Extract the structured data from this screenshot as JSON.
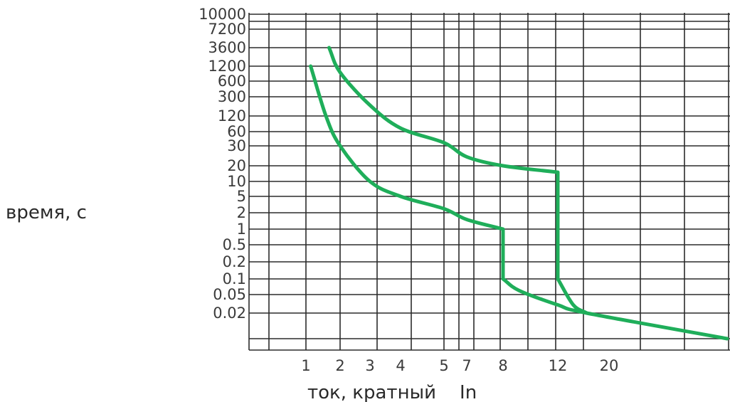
{
  "chart_data": {
    "type": "line",
    "title": "",
    "ylabel": "время, с",
    "xlabel": "ток, кратный    In",
    "ytick_labels": [
      "10000",
      "7200",
      "3600",
      "1200",
      "600",
      "300",
      "120",
      "60",
      "30",
      "20",
      "10",
      "5",
      "2",
      "1",
      "0.5",
      "0.2",
      "0.1",
      "0.05",
      "0.02"
    ],
    "xtick_labels": [
      "1",
      "2",
      "3",
      "4",
      "5",
      "7",
      "8",
      "12",
      "20"
    ],
    "grid": true,
    "series": [
      {
        "color": "#1fae5a",
        "points": [
          [
            1.1,
            1200
          ],
          [
            1.5,
            120
          ],
          [
            2,
            30
          ],
          [
            3,
            10
          ],
          [
            4,
            5
          ],
          [
            5,
            2.5
          ],
          [
            7,
            1.5
          ],
          [
            8,
            1
          ],
          [
            8,
            0.1
          ],
          [
            9,
            0.06
          ],
          [
            12,
            0.03
          ],
          [
            16,
            0.02
          ],
          [
            30,
            0.005
          ]
        ]
      },
      {
        "color": "#1fae5a",
        "points": [
          [
            1.6,
            3600
          ],
          [
            2,
            900
          ],
          [
            3,
            200
          ],
          [
            4,
            70
          ],
          [
            5,
            35
          ],
          [
            7,
            24
          ],
          [
            8,
            20
          ],
          [
            12,
            15
          ],
          [
            12,
            0.1
          ],
          [
            14,
            0.03
          ],
          [
            16,
            0.02
          ]
        ]
      }
    ]
  }
}
